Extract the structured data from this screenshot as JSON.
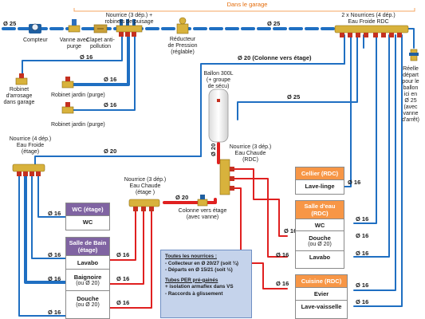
{
  "header": {
    "garage_label": "Dans le garage"
  },
  "diameters": {
    "d25": "Ø 25",
    "d16": "Ø 16",
    "d20": "Ø 20",
    "d20_col": "Ø 20 (Colonne vers étage)"
  },
  "labels": {
    "compteur": "Compteur",
    "vanne": [
      "Vanne avec",
      "purge"
    ],
    "clapet": [
      "Clapet anti-",
      "pollution"
    ],
    "nourrice_garage": [
      "Nourrice (3 dép.) +",
      "robinets de puisage"
    ],
    "reducteur": [
      "Réducteur",
      "de Pression",
      "(réglable)"
    ],
    "nourrices_rdc": [
      "2 x Nourrices (4 dép.)",
      "Eau Froide RDC"
    ],
    "robinet_arrosage": [
      "Robinet",
      "d'arrosage",
      "dans garage"
    ],
    "robinet_jardin": "Robinet jardin (purge)",
    "ballon": [
      "Ballon 300L",
      "(+ groupe",
      "de sécu)"
    ],
    "reel_depart": [
      "Réelle",
      "départ",
      "pour le",
      "ballon",
      "ici en",
      "Ø 25",
      "(avec",
      "vanne",
      "d'arrêt)"
    ],
    "nourrice_ef_etage": [
      "Nourrice (4 dép.)",
      "Eau Froide",
      "(étage)"
    ],
    "nourrice_ec_rdc": [
      "Nourrice (3 dép.)",
      "Eau Chaude",
      "(RDC)"
    ],
    "nourrice_ec_etage": [
      "Nourrice (3 dép.)",
      "Eau Chaude",
      "(étage )"
    ],
    "colonne_etage": [
      "Colonne vers étage",
      "(avec vanne)"
    ]
  },
  "rooms": {
    "wc_etage": {
      "title": "WC (étage)",
      "items": [
        "WC"
      ]
    },
    "sdb_etage": {
      "title": "Salle de Bain (étage)",
      "items": [
        "Lavabo",
        "Baignoire",
        "Douche"
      ],
      "subs": [
        "",
        "(ou Ø 20)",
        "(ou Ø 20)"
      ]
    },
    "cellier": {
      "title": "Cellier (RDC)",
      "items": [
        "Lave-linge"
      ]
    },
    "salle_eau": {
      "title": "Salle d'eau (RDC)",
      "items": [
        "WC",
        "Douche",
        "Lavabo"
      ],
      "subs": [
        "",
        "(ou Ø 20)",
        ""
      ]
    },
    "cuisine": {
      "title": "Cuisine (RDC)",
      "items": [
        "Evier",
        "Lave-vaisselle"
      ]
    }
  },
  "notes": {
    "title1": "Toutes les nourrices :",
    "line1": "- Collecteur en Ø 20/27 (soit ¾)",
    "line2": "- Départs en Ø 15/21 (soit ½)",
    "title2": "Tubes PER pré-gainés",
    "line3": "+ isolation armaflex dans VS",
    "line4": "- Raccords à glissement"
  },
  "colors": {
    "cold": "#1f6fc2",
    "hot": "#e02020",
    "purple": "#8064a2",
    "orange": "#f79646",
    "garage": "#f4a460"
  }
}
